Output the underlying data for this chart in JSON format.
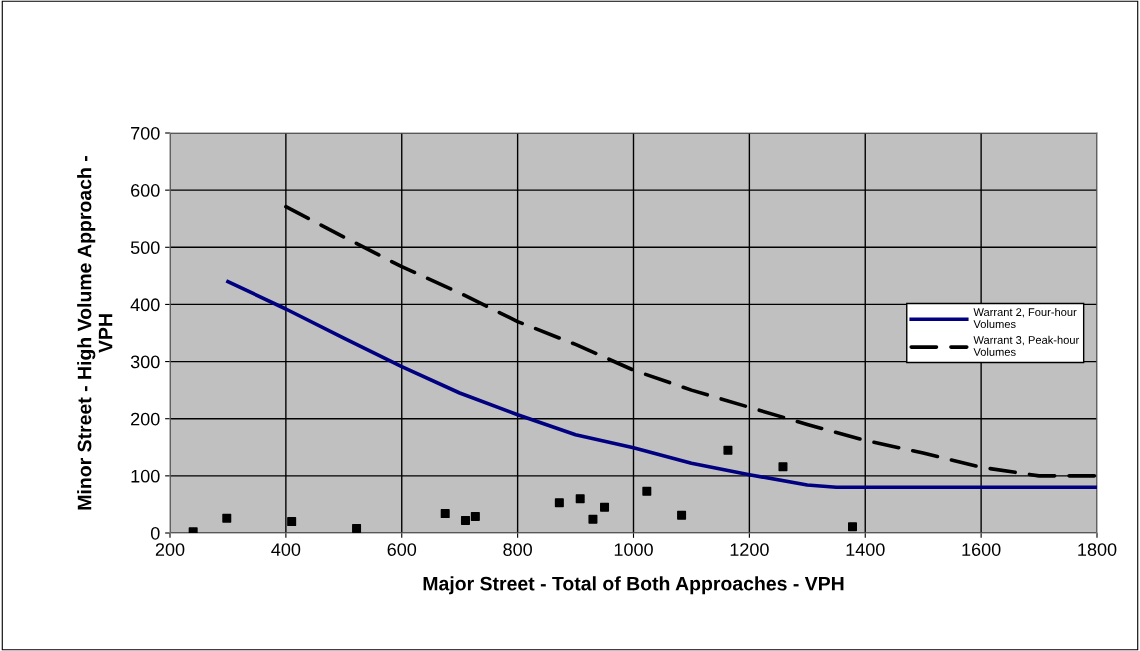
{
  "chart_data": {
    "type": "line",
    "xlabel": "Major Street - Total of Both Approaches - VPH",
    "ylabel": "Minor Street - High Volume Approach -\nVPH",
    "xlim": [
      200,
      1800
    ],
    "xticks": [
      200,
      400,
      600,
      800,
      1000,
      1200,
      1400,
      1600,
      1800
    ],
    "ylim": [
      0,
      700
    ],
    "yticks": [
      0,
      100,
      200,
      300,
      400,
      500,
      600,
      700
    ],
    "grid": true,
    "legend": "right",
    "series": [
      {
        "name": "Warrant 2, Four-hour\nVolumes",
        "color": "#000080",
        "line_style": "solid",
        "x": [
          300,
          400,
          500,
          600,
          700,
          800,
          900,
          1000,
          1100,
          1200,
          1300,
          1350,
          1800
        ],
        "values": [
          440,
          392,
          341,
          291,
          245,
          207,
          172,
          149,
          122,
          102,
          84,
          80,
          80
        ]
      },
      {
        "name": "Warrant 3, Peak-hour\nVolumes",
        "color": "#000000",
        "line_style": "dashed",
        "x": [
          400,
          500,
          600,
          700,
          800,
          900,
          1000,
          1100,
          1200,
          1300,
          1400,
          1500,
          1600,
          1700,
          1800
        ],
        "values": [
          571,
          518,
          466,
          420,
          370,
          330,
          285,
          250,
          220,
          190,
          162,
          140,
          115,
          100,
          100
        ]
      },
      {
        "type": "scatter",
        "color": "#000000",
        "marker": "square",
        "x": [
          240,
          298,
          410,
          522,
          675,
          710,
          727,
          872,
          908,
          930,
          950,
          1023,
          1083,
          1163,
          1258,
          1378
        ],
        "values": [
          2,
          26,
          20,
          8,
          34,
          22,
          29,
          53,
          60,
          24,
          45,
          73,
          31,
          145,
          116,
          11
        ]
      }
    ]
  }
}
